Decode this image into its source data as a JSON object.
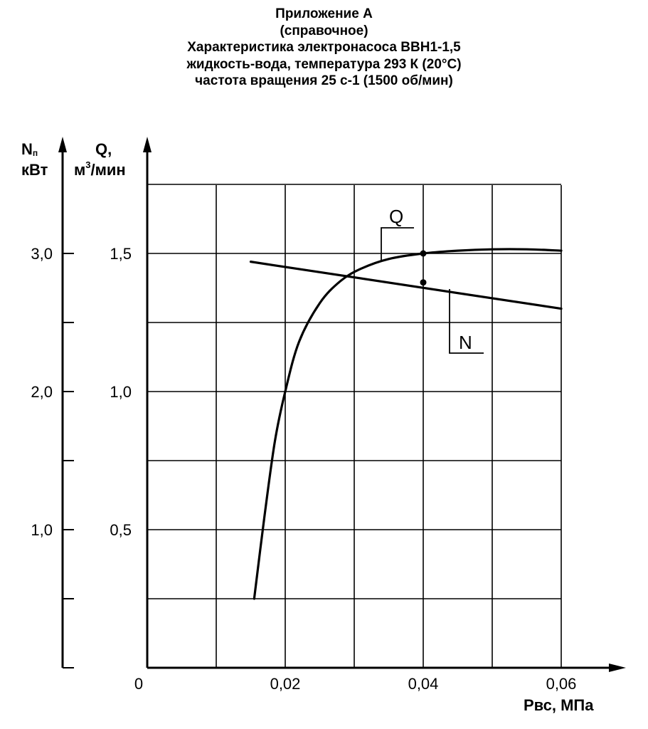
{
  "title_lines": [
    "Приложение А",
    "(справочное)",
    "Характеристика электронасоса ВВН1-1,5",
    "жидкость-вода, температура 293 К (20°С)",
    "частота вращения 25 с-1 (1500 об/мин)"
  ],
  "chart_data": {
    "type": "line",
    "x_axis": {
      "label": "Рвс, МПа",
      "range": [
        0,
        0.06
      ],
      "ticks": [
        "0",
        "0,02",
        "0,04",
        "0,06"
      ],
      "tick_values": [
        0,
        0.02,
        0.04,
        0.06
      ]
    },
    "y_axis_left": {
      "label_main": "N",
      "label_sub": "п",
      "label_unit": "кВт",
      "range": [
        0,
        3.0
      ],
      "ticks": [
        "1,0",
        "2,0",
        "3,0"
      ],
      "tick_values": [
        1.0,
        2.0,
        3.0
      ]
    },
    "y_axis_right": {
      "label_main": "Q,",
      "label_unit_base": "м",
      "label_unit_sup": "3",
      "label_unit_rest": "/мин",
      "range": [
        0,
        1.5
      ],
      "ticks": [
        "0,5",
        "1,0",
        "1,5"
      ],
      "tick_values": [
        0.5,
        1.0,
        1.5
      ]
    },
    "grid": true,
    "series": [
      {
        "name": "Q",
        "axis": "right",
        "x": [
          0.0155,
          0.017,
          0.0185,
          0.02,
          0.022,
          0.025,
          0.028,
          0.031,
          0.035,
          0.04,
          0.045,
          0.05,
          0.055,
          0.06
        ],
        "y": [
          0.25,
          0.55,
          0.82,
          1.0,
          1.18,
          1.32,
          1.4,
          1.445,
          1.48,
          1.5,
          1.51,
          1.515,
          1.515,
          1.51
        ]
      },
      {
        "name": "N",
        "axis": "left",
        "x": [
          0.015,
          0.06
        ],
        "y": [
          2.94,
          2.6
        ]
      }
    ],
    "markers": [
      {
        "series": "Q",
        "x": 0.04,
        "y": 1.5
      },
      {
        "series": "N",
        "x": 0.04,
        "y": 2.79
      }
    ]
  }
}
